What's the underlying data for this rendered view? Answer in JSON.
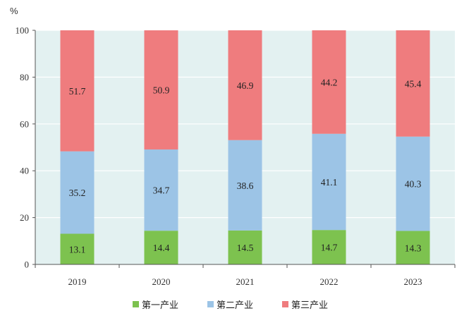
{
  "chart_data": {
    "type": "bar",
    "stacked": true,
    "unit": "%",
    "categories": [
      "2019",
      "2020",
      "2021",
      "2022",
      "2023"
    ],
    "series": [
      {
        "name": "第一产业",
        "values": [
          13.1,
          14.4,
          14.5,
          14.7,
          14.3
        ],
        "color": "#7dc24f"
      },
      {
        "name": "第二产业",
        "values": [
          35.2,
          34.7,
          38.6,
          41.1,
          40.3
        ],
        "color": "#9cc4e6"
      },
      {
        "name": "第三产业",
        "values": [
          51.7,
          50.9,
          46.9,
          44.2,
          45.4
        ],
        "color": "#ef7c7e"
      }
    ],
    "ylim": [
      0,
      100
    ],
    "yticks": [
      0,
      20,
      40,
      60,
      80,
      100
    ],
    "grid": true,
    "legend_position": "bottom",
    "colors": {
      "plot_background": "#e3f1f1",
      "grid": "#ffffff",
      "axis": "#555555"
    }
  }
}
